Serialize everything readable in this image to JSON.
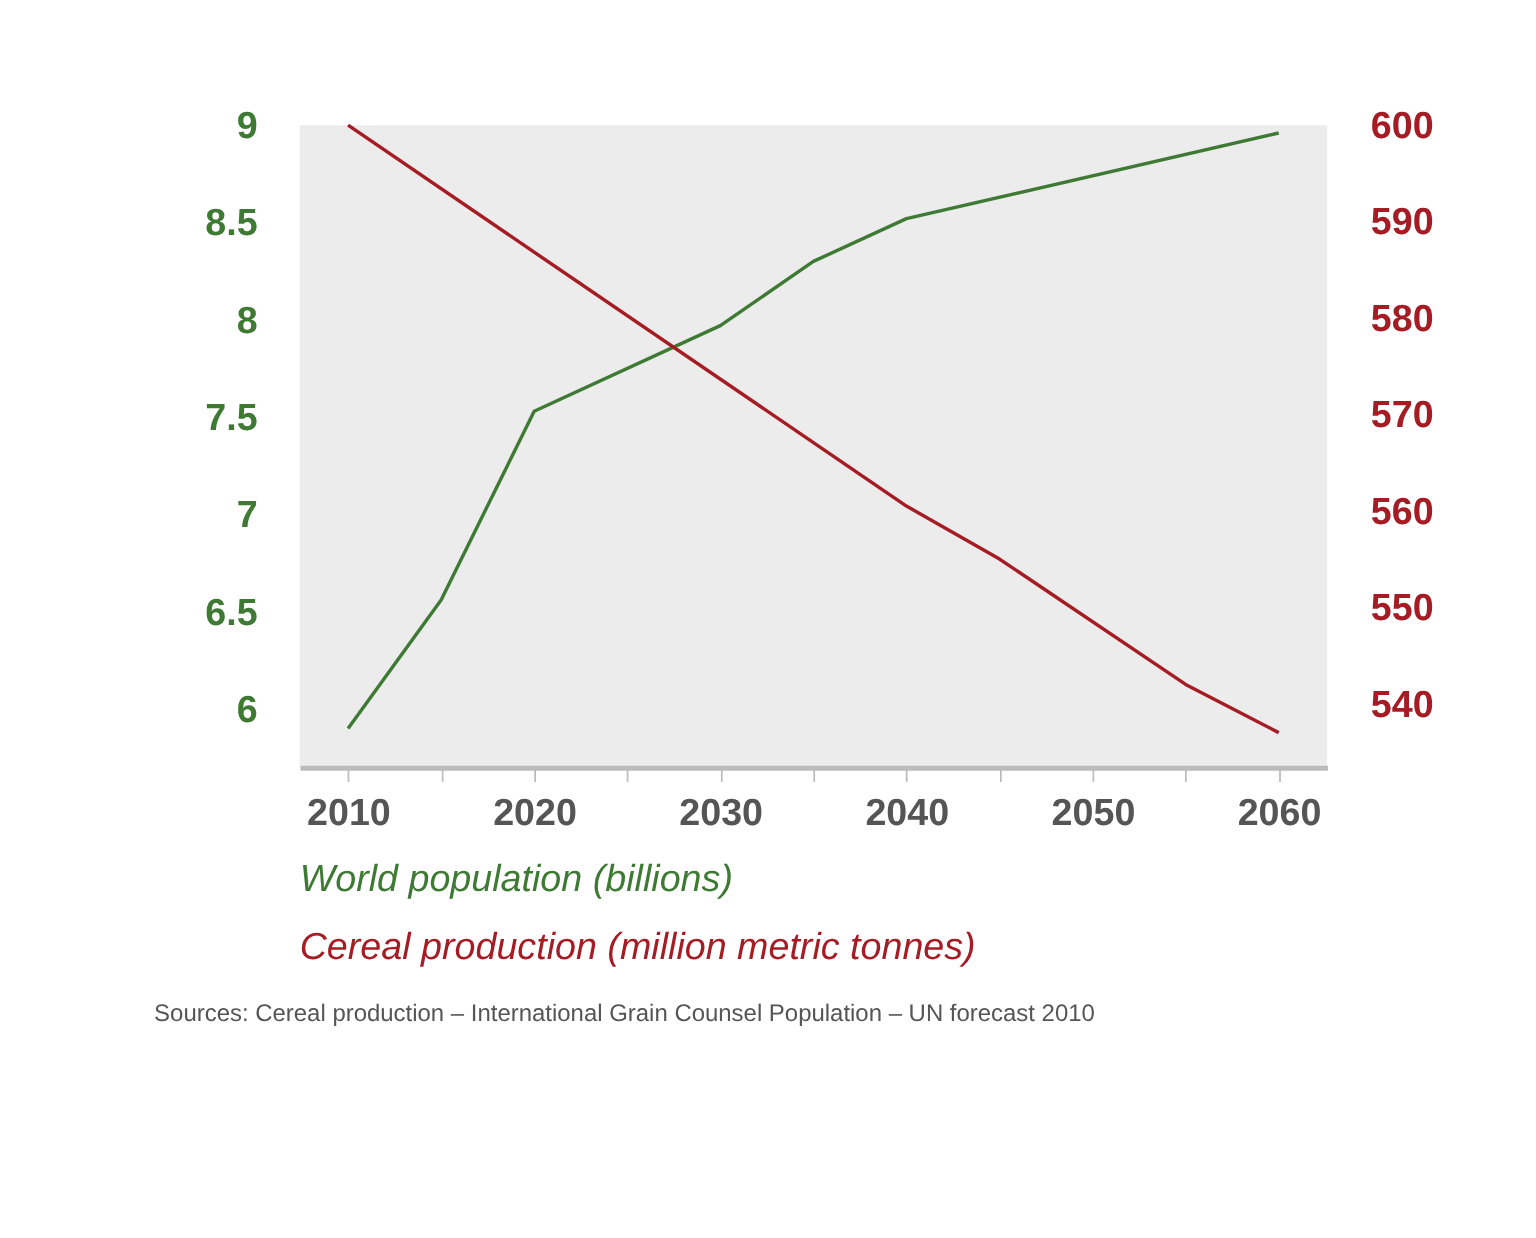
{
  "chart_data": {
    "type": "line",
    "series": [
      {
        "name": "World population (billions)",
        "color": "#3f7a35",
        "x": [
          2010,
          2015,
          2020,
          2030,
          2035,
          2040,
          2060
        ],
        "values": [
          5.9,
          6.56,
          7.53,
          7.97,
          8.3,
          8.52,
          8.96
        ]
      },
      {
        "name": "Cereal production (million metric tonnes)",
        "color": "#a51c24",
        "axis": "y2",
        "x": [
          2010,
          2040,
          2045,
          2055,
          2060
        ],
        "values": [
          600,
          560.5,
          555,
          542,
          537
        ]
      }
    ],
    "xlim": [
      2007.4,
      2062.6
    ],
    "xticks": [
      2010,
      {
        "value": 2015,
        "label": null
      },
      2020,
      {
        "value": 2025,
        "label": null
      },
      2030,
      {
        "value": 2035,
        "label": null
      },
      2040,
      {
        "value": 2045,
        "label": null
      },
      2050,
      {
        "value": 2055,
        "label": null
      },
      2060
    ],
    "ylim": [
      5.7,
      9.0
    ],
    "yticks": [
      6,
      6.5,
      7,
      7.5,
      8,
      8.5,
      9
    ],
    "y2lim": [
      533.4,
      600
    ],
    "y2ticks": [
      540,
      550,
      560,
      570,
      580,
      590,
      600
    ],
    "grid": false,
    "legend": "bottom",
    "marker": "none",
    "line_style": "solid",
    "annotations": [
      "Sources: Cereal production – International Grain Counsel Population – UN forecast 2010"
    ]
  }
}
